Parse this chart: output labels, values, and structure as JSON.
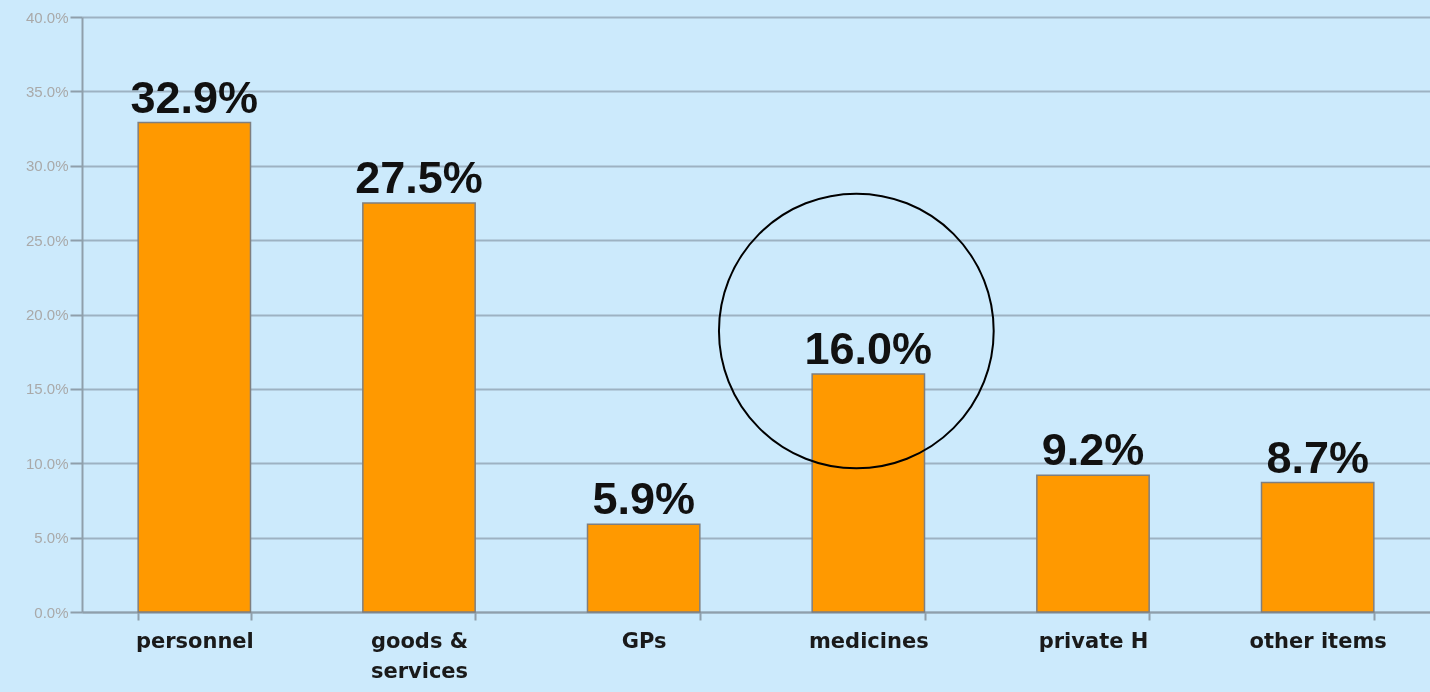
{
  "chart_data": {
    "type": "bar",
    "categories": [
      "personnel",
      "goods & services",
      "GPs",
      "medicines",
      "private H",
      "other items"
    ],
    "values": [
      32.9,
      27.5,
      5.9,
      16.0,
      9.2,
      8.7
    ],
    "value_labels": [
      "32.9%",
      "27.5%",
      "5.9%",
      "16.0%",
      "9.2%",
      "8.7%"
    ],
    "color": "#ff9900",
    "ylim": [
      0,
      40
    ],
    "yticks": [
      {
        "value": 0,
        "label": "0.0%"
      },
      {
        "value": 5,
        "label": "5.0%"
      },
      {
        "value": 10,
        "label": "10.0%"
      },
      {
        "value": 15,
        "label": "15.0%"
      },
      {
        "value": 20,
        "label": "20.0%"
      },
      {
        "value": 25,
        "label": "25.0%"
      },
      {
        "value": 30,
        "label": "30.0%"
      },
      {
        "value": 35,
        "label": "35.0%"
      },
      {
        "value": 40,
        "label": "40.0%"
      }
    ],
    "grid": "y"
  }
}
